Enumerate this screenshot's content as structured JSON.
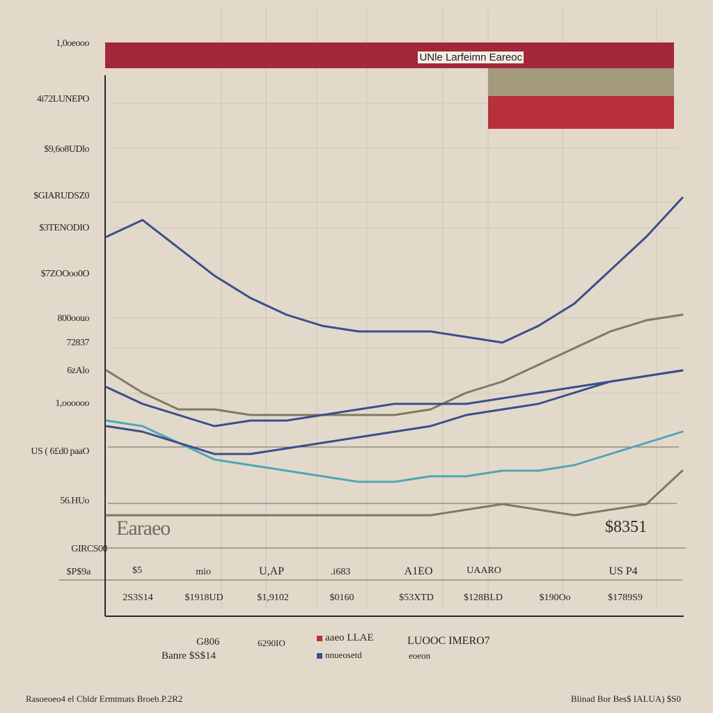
{
  "colors": {
    "background": "#e3d9cb",
    "banner": "#a3283a",
    "flag_tan": "#a49a7c",
    "flag_red": "#b7303a",
    "navy": "#3a4e8c",
    "teal": "#4da7b7",
    "olive": "#7e7a5f",
    "grid": "#cfc5b5"
  },
  "banner_title": "UNle Larfeimn Eareoc",
  "big_text": "Earaeo",
  "big_value": "$8351",
  "y_tick_labels": [
    "1,0oeooo",
    "4i72LUNEPO",
    "$9,6o8UDlo",
    "$GIARUDSZ0",
    "$3TENODIO",
    "$7ZOOoo0O",
    "800oouo",
    "72837",
    "6zAlo",
    "1,oooooo",
    "US ( 6£d0 paaO",
    "56.HUo",
    "GIRCS00"
  ],
  "row1_label": "$P$9a",
  "row1": [
    "$5",
    "mio",
    "U,AP",
    ".i683",
    "A1EO",
    "UAARO",
    "US P4"
  ],
  "row2": [
    "2S3S14",
    "$1918UD",
    "$1,9102",
    "$0160",
    "$53XTD",
    "$128BLD",
    "$190Oo",
    "$1789S9"
  ],
  "legend": {
    "left_value": "G806",
    "left_label": "Banre $S$14",
    "mid_value": "6290IO",
    "item_red": "aaeo LLAE",
    "item_navy": "nnueosetd",
    "item_right_title": "LUOOC IMERO7",
    "item_right_sub": "eoeon"
  },
  "footer_left": "Rasoeoeo4 el Cbldr Ermtmats Broeb.P.2R2",
  "footer_right": "Blinad Bor Bes$ IALUA) $S0",
  "chart_data": {
    "type": "line",
    "title": "UNle Larfeimn Eareoc",
    "x": [
      0,
      1,
      2,
      3,
      4,
      5,
      6,
      7,
      8,
      9,
      10,
      11,
      12,
      13,
      14,
      15,
      16
    ],
    "series": [
      {
        "color": "#3a4e8c",
        "values": [
          60,
          63,
          58,
          53,
          49,
          46,
          44,
          43,
          43,
          43,
          42,
          41,
          44,
          48,
          54,
          60,
          67
        ]
      },
      {
        "color": "#7e7a5f",
        "values": [
          36,
          32,
          29,
          29,
          28,
          28,
          28,
          28,
          28,
          29,
          32,
          34,
          37,
          40,
          43,
          45,
          46
        ]
      },
      {
        "color": "#3a4e8c",
        "values": [
          33,
          30,
          28,
          26,
          27,
          27,
          28,
          29,
          30,
          30,
          30,
          31,
          32,
          33,
          34,
          35,
          36
        ]
      },
      {
        "color": "#4da7b7",
        "values": [
          27,
          26,
          23,
          20,
          19,
          18,
          17,
          16,
          16,
          17,
          17,
          18,
          18,
          19,
          21,
          23,
          25
        ]
      },
      {
        "color": "#3a4e8c",
        "values": [
          26,
          25,
          23,
          21,
          21,
          22,
          23,
          24,
          25,
          26,
          28,
          29,
          30,
          32,
          34,
          35,
          36
        ]
      },
      {
        "color": "#7e7a5f",
        "values": [
          10,
          10,
          10,
          10,
          10,
          10,
          10,
          10,
          10,
          10,
          11,
          12,
          11,
          10,
          11,
          12,
          18
        ]
      }
    ]
  }
}
